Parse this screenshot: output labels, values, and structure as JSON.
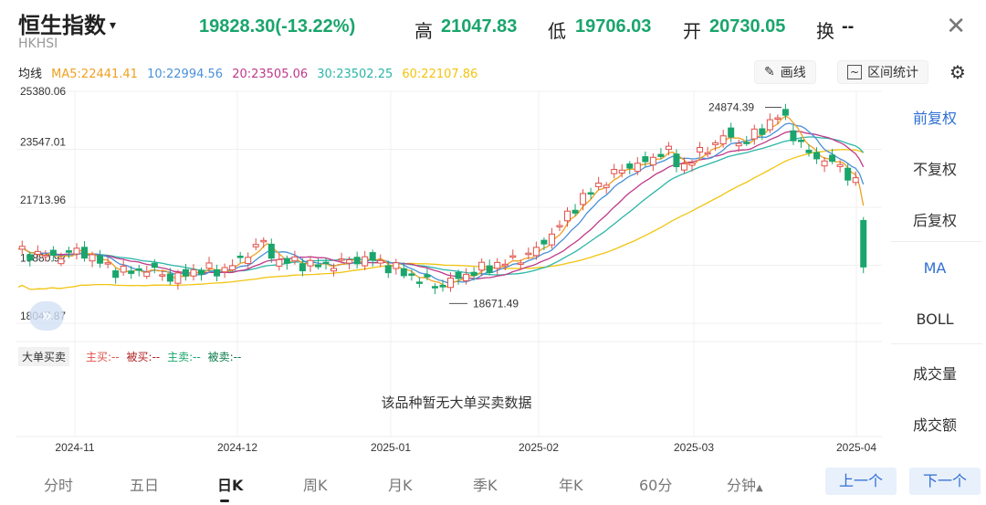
{
  "header": {
    "title": "恒生指数",
    "code": "HKHSI",
    "price": "19828.30(-13.22%)",
    "high_label": "高",
    "high": "21047.83",
    "low_label": "低",
    "low": "19706.03",
    "open_label": "开",
    "open": "20730.05",
    "turnover_label": "换",
    "turnover": "--",
    "close_icon": "close-icon"
  },
  "ma_bar": {
    "label": "均线",
    "ma5": "MA5:22441.41",
    "ma10": "10:22994.56",
    "ma20": "20:23505.06",
    "ma30": "30:23502.25",
    "ma60": "60:22107.86",
    "colors": {
      "ma5": "#f0a020",
      "ma10": "#4a90d9",
      "ma20": "#c0388a",
      "ma30": "#2cb5a8",
      "ma60": "#f2c410"
    }
  },
  "tools": {
    "draw": "画线",
    "range_stats": "区间统计",
    "settings_icon": "settings-icon"
  },
  "side": {
    "items": [
      "前复权",
      "不复权",
      "后复权",
      "MA",
      "BOLL",
      "成交量",
      "成交额"
    ],
    "active_adjust": "前复权",
    "active_indicator": "MA"
  },
  "chart_data": {
    "type": "candlestick",
    "y_ticks": [
      "25380.06",
      "23547.01",
      "21713.96",
      "19880.92",
      "18047.87"
    ],
    "x_ticks": [
      "2024-11",
      "2024-12",
      "2025-01",
      "2025-02",
      "2025-03",
      "2025-04"
    ],
    "ylim": [
      18047.87,
      25380.06
    ],
    "max_annotation": "24874.39",
    "min_annotation": "18671.49",
    "up_color": "#e0504a",
    "down_color": "#1aa56c"
  },
  "big_orders": {
    "label": "大单买卖",
    "main_buy": "主买:--",
    "passive_buy": "被买:--",
    "main_sell": "主卖:--",
    "passive_sell": "被卖:--",
    "no_data": "该品种暂无大单买卖数据"
  },
  "periods": {
    "tabs": [
      "分时",
      "五日",
      "日K",
      "周K",
      "月K",
      "季K",
      "年K",
      "60分",
      "分钟"
    ],
    "active": "日K",
    "prev": "上一个",
    "next": "下一个"
  }
}
